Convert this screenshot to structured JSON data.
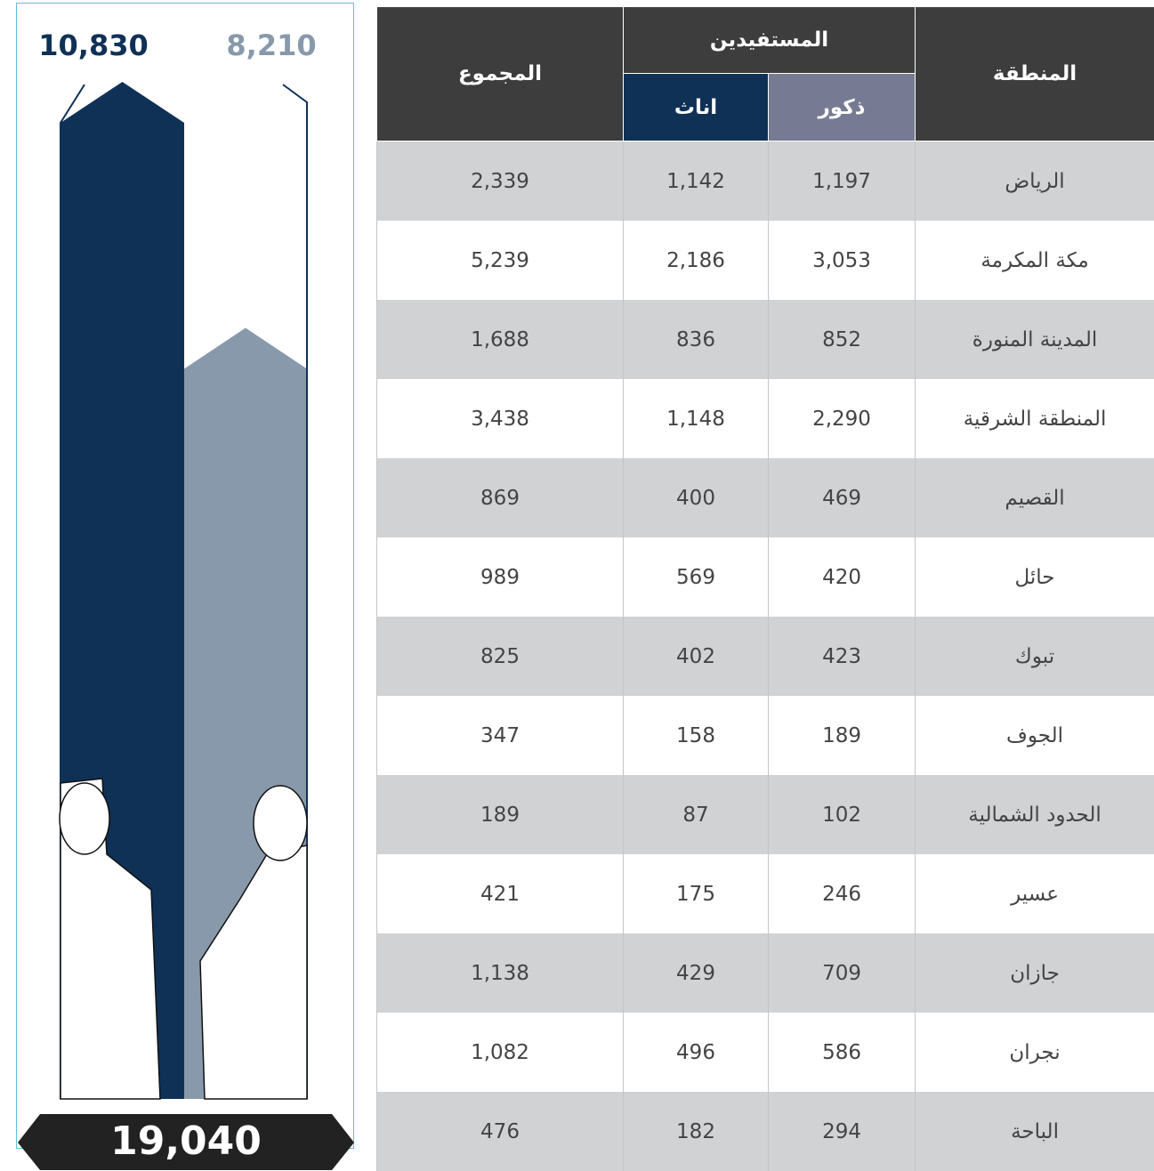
{
  "summary": {
    "bars": [
      {
        "value": 10830,
        "label": "10,830",
        "color": "#103156"
      },
      {
        "value": 8210,
        "label": "8,210",
        "color": "#8799aa"
      }
    ],
    "total": "19,040"
  },
  "table": {
    "header": {
      "region": "المنطقة",
      "beneficiaries": "المستفيدين",
      "male": "ذكور",
      "female": "اناث",
      "total": "المجموع"
    },
    "rows": [
      [
        "الرياض",
        "1,197",
        "1,142",
        "2,339"
      ],
      [
        "مكة المكرمة",
        "3,053",
        "2,186",
        "5,239"
      ],
      [
        "المدينة المنورة",
        "852",
        "836",
        "1,688"
      ],
      [
        "المنطقة الشرقية",
        "2,290",
        "1,148",
        "3,438"
      ],
      [
        "القصيم",
        "469",
        "400",
        "869"
      ],
      [
        "حائل",
        "420",
        "569",
        "989"
      ],
      [
        "تبوك",
        "423",
        "402",
        "825"
      ],
      [
        "الجوف",
        "189",
        "158",
        "347"
      ],
      [
        "الحدود الشمالية",
        "102",
        "87",
        "189"
      ],
      [
        "عسير",
        "246",
        "175",
        "421"
      ],
      [
        "جازان",
        "709",
        "429",
        "1,138"
      ],
      [
        "نجران",
        "586",
        "496",
        "1,082"
      ],
      [
        "الباحة",
        "294",
        "182",
        "476"
      ]
    ]
  }
}
